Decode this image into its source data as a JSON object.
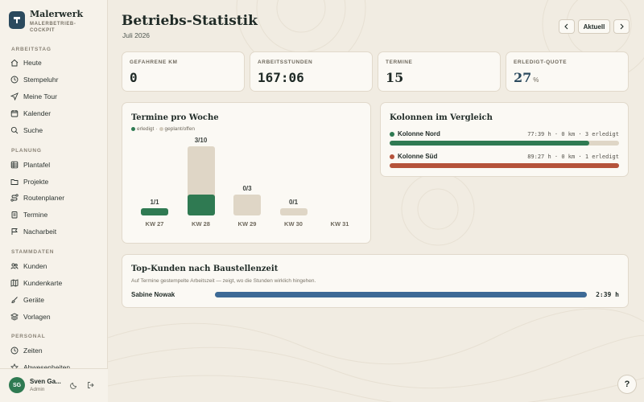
{
  "brand": {
    "name": "Malerwerk",
    "subtitle": "MALERBETRIEB-COCKPIT"
  },
  "nav": {
    "sections": [
      {
        "title": "ARBEITSTAG",
        "items": [
          {
            "label": "Heute",
            "icon": "home-icon"
          },
          {
            "label": "Stempeluhr",
            "icon": "clock-icon"
          },
          {
            "label": "Meine Tour",
            "icon": "navigation-icon"
          },
          {
            "label": "Kalender",
            "icon": "calendar-icon"
          },
          {
            "label": "Suche",
            "icon": "search-icon"
          }
        ]
      },
      {
        "title": "PLANUNG",
        "items": [
          {
            "label": "Plantafel",
            "icon": "grid-icon"
          },
          {
            "label": "Projekte",
            "icon": "folder-icon"
          },
          {
            "label": "Routenplaner",
            "icon": "route-icon"
          },
          {
            "label": "Termine",
            "icon": "clipboard-icon"
          },
          {
            "label": "Nacharbeit",
            "icon": "flag-icon"
          }
        ]
      },
      {
        "title": "STAMMDATEN",
        "items": [
          {
            "label": "Kunden",
            "icon": "users-icon"
          },
          {
            "label": "Kundenkarte",
            "icon": "map-icon"
          },
          {
            "label": "Geräte",
            "icon": "brush-icon"
          },
          {
            "label": "Vorlagen",
            "icon": "layers-icon"
          }
        ]
      },
      {
        "title": "PERSONAL",
        "items": [
          {
            "label": "Zeiten",
            "icon": "clock-icon"
          },
          {
            "label": "Abwesenheiten",
            "icon": "star-icon"
          }
        ]
      }
    ]
  },
  "user": {
    "initials": "SG",
    "name": "Sven Ga...",
    "role": "Admin"
  },
  "header": {
    "title": "Betriebs-Statistik",
    "subtitle": "Juli 2026",
    "current_label": "Aktuell"
  },
  "kpis": [
    {
      "label": "GEFAHRENE KM",
      "value": "0"
    },
    {
      "label": "ARBEITSSTUNDEN",
      "value": "167:06"
    },
    {
      "label": "TERMINE",
      "value": "15"
    },
    {
      "label": "ERLEDIGT-QUOTE",
      "value": "27",
      "unit": "%"
    }
  ],
  "termine_chart": {
    "title": "Termine pro Woche",
    "legend_done": "erledigt",
    "legend_open": "geplant/offen",
    "weeks": [
      {
        "week": "KW 27",
        "done": 1,
        "total": 1,
        "label": "1/1"
      },
      {
        "week": "KW 28",
        "done": 3,
        "total": 10,
        "label": "3/10"
      },
      {
        "week": "KW 29",
        "done": 0,
        "total": 3,
        "label": "0/3"
      },
      {
        "week": "KW 30",
        "done": 0,
        "total": 1,
        "label": "0/1"
      },
      {
        "week": "KW 31",
        "done": 0,
        "total": 0,
        "label": ""
      }
    ],
    "color_done": "#2f7a52",
    "color_open": "#dfd6c6"
  },
  "kolonnen": {
    "title": "Kolonnen im Vergleich",
    "items": [
      {
        "name": "Kolonne Nord",
        "stats": "77:39 h · 0 km · 3 erledigt",
        "share": 0.87,
        "color": "#2f7a52"
      },
      {
        "name": "Kolonne Süd",
        "stats": "89:27 h · 0 km · 1 erledigt",
        "share": 1.0,
        "color": "#b5533a"
      }
    ]
  },
  "top_kunden": {
    "title": "Top-Kunden nach Baustellenzeit",
    "subtitle": "Auf Termine gestempelte Arbeitszeit — zeigt, wo die Stunden wirklich hingehen.",
    "items": [
      {
        "name": "Sabine Nowak",
        "value": "2:39 h",
        "share": 1.0,
        "color": "#3d6a96"
      }
    ]
  },
  "help_label": "?"
}
